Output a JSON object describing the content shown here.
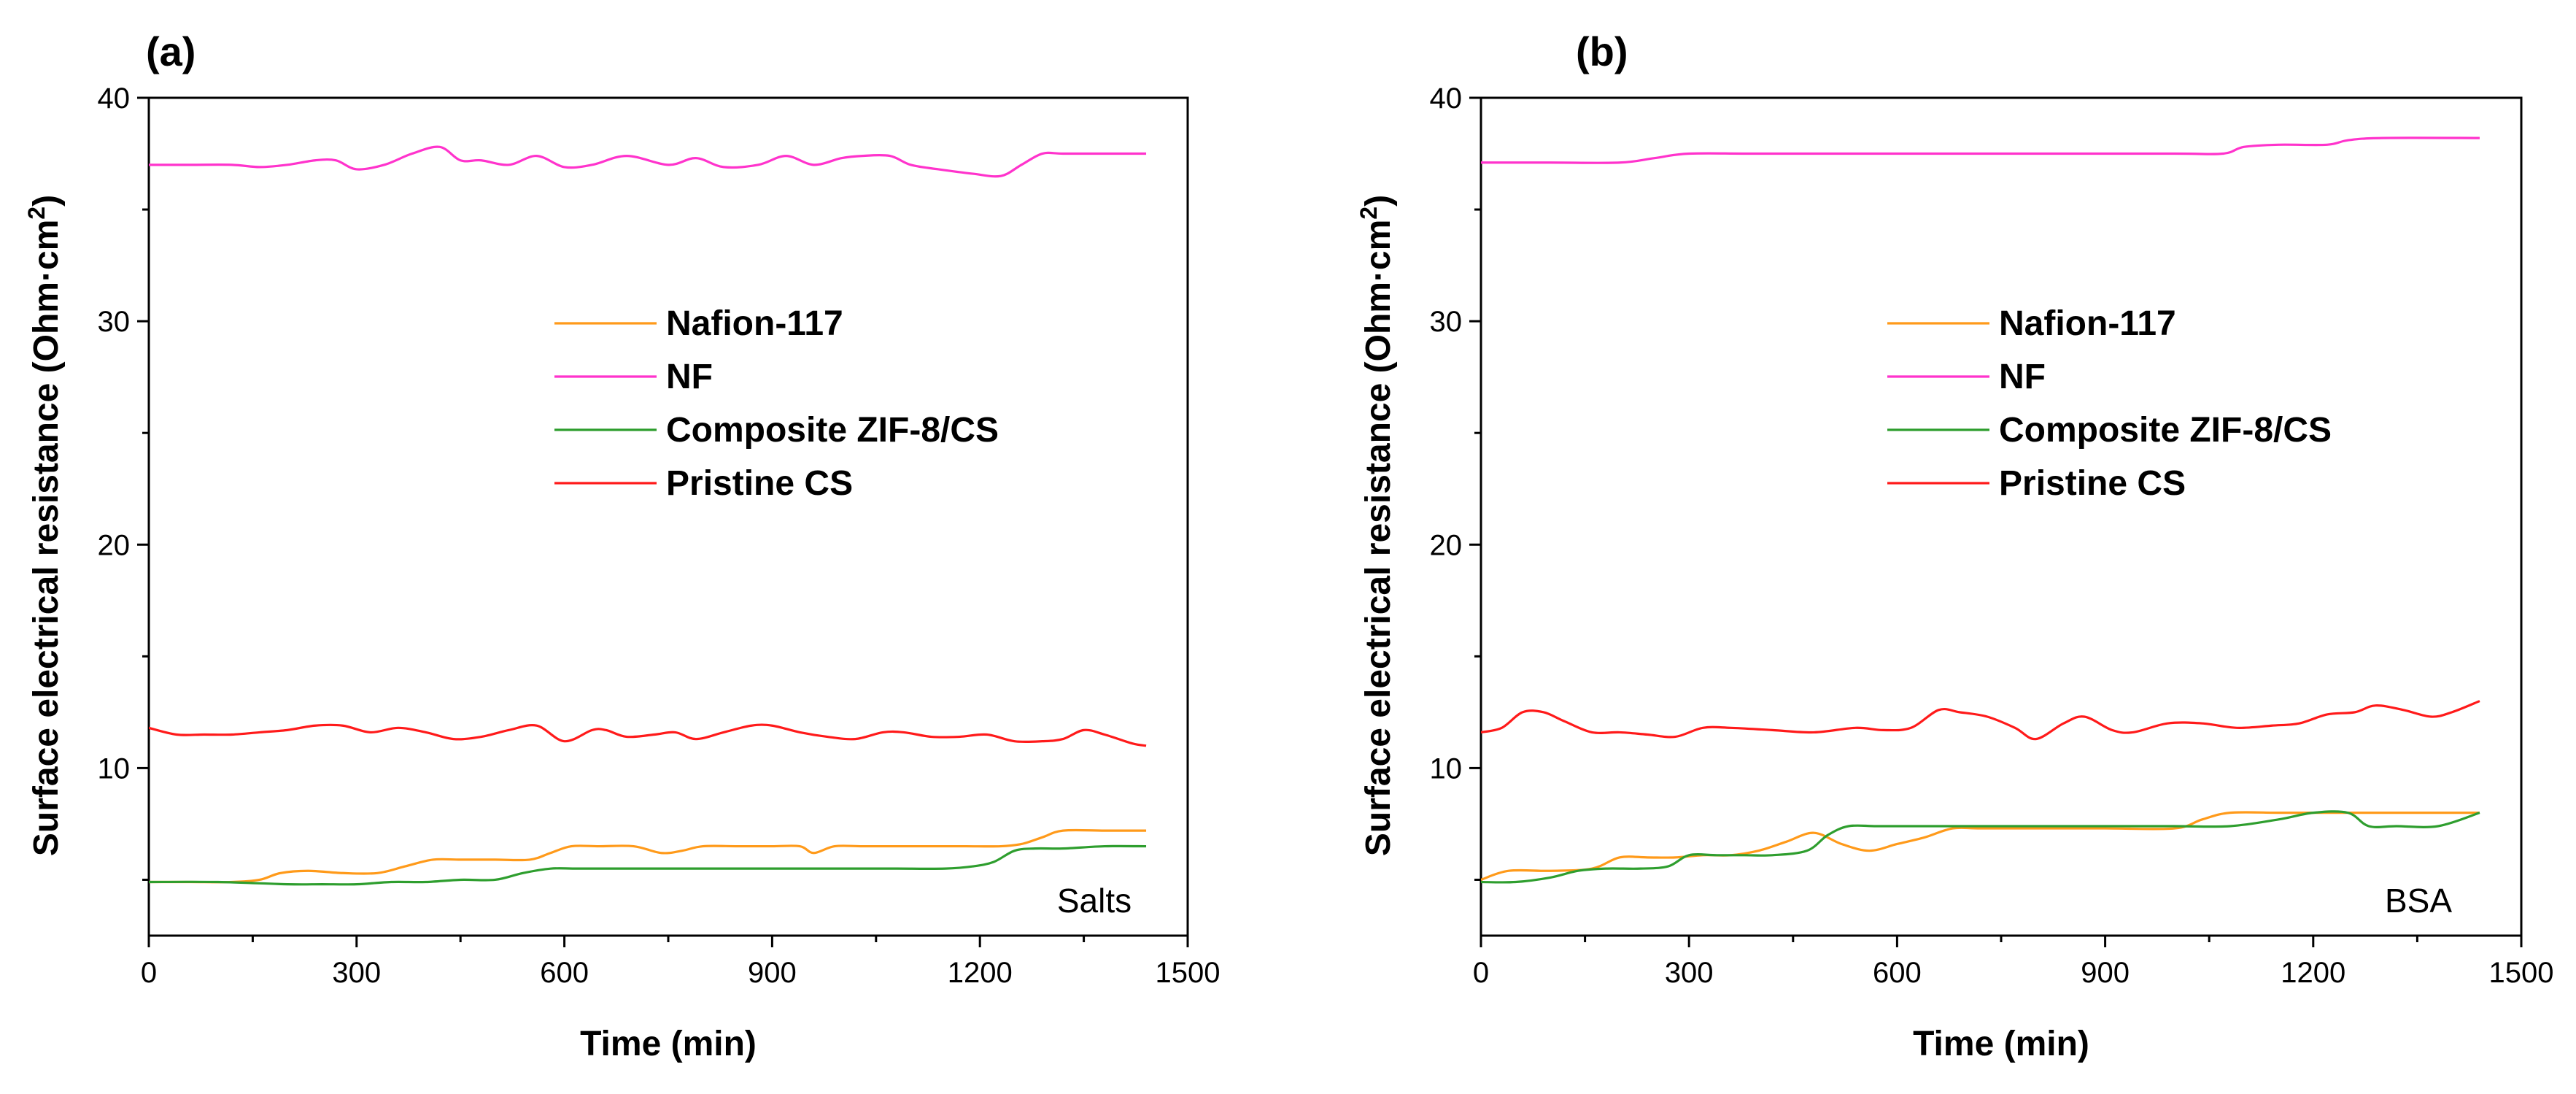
{
  "chart_data": [
    {
      "type": "line",
      "panel_label": "(a)",
      "annotation": "Salts",
      "xlabel": "Time (min)",
      "ylabel_text": "Surface electrical resistance (Ohm·cm",
      "ylabel_sup": "2",
      "ylabel_close": ")",
      "xlim": [
        0,
        1500
      ],
      "ylim": [
        2.5,
        40
      ],
      "xticks": [
        0,
        300,
        600,
        900,
        1200,
        1500
      ],
      "yticks": [
        10,
        20,
        30,
        40
      ],
      "legend_position": "center",
      "series": [
        {
          "name": "Nafion-117",
          "color": "#ff9a1a",
          "x": [
            0,
            60,
            120,
            160,
            190,
            230,
            280,
            330,
            370,
            410,
            450,
            500,
            550,
            580,
            610,
            650,
            700,
            740,
            770,
            800,
            850,
            900,
            940,
            960,
            990,
            1030,
            1080,
            1130,
            1180,
            1230,
            1260,
            1290,
            1320,
            1380,
            1440
          ],
          "y": [
            4.9,
            4.9,
            4.9,
            5.0,
            5.3,
            5.4,
            5.3,
            5.3,
            5.6,
            5.9,
            5.9,
            5.9,
            5.9,
            6.2,
            6.5,
            6.5,
            6.5,
            6.2,
            6.3,
            6.5,
            6.5,
            6.5,
            6.5,
            6.2,
            6.5,
            6.5,
            6.5,
            6.5,
            6.5,
            6.5,
            6.6,
            6.9,
            7.2,
            7.2,
            7.2
          ]
        },
        {
          "name": "NF",
          "color": "#ff33cc",
          "x": [
            0,
            60,
            120,
            160,
            200,
            240,
            270,
            300,
            340,
            380,
            420,
            450,
            480,
            520,
            560,
            600,
            640,
            690,
            750,
            790,
            830,
            880,
            920,
            960,
            1000,
            1030,
            1070,
            1100,
            1140,
            1190,
            1230,
            1260,
            1290,
            1320,
            1380,
            1440
          ],
          "y": [
            37.0,
            37.0,
            37.0,
            36.9,
            37.0,
            37.2,
            37.2,
            36.8,
            37.0,
            37.5,
            37.8,
            37.2,
            37.2,
            37.0,
            37.4,
            36.9,
            37.0,
            37.4,
            37.0,
            37.3,
            36.9,
            37.0,
            37.4,
            37.0,
            37.3,
            37.4,
            37.4,
            37.0,
            36.8,
            36.6,
            36.5,
            37.0,
            37.5,
            37.5,
            37.5,
            37.5
          ]
        },
        {
          "name": "Composite ZIF-8/CS",
          "color": "#2e9e2e",
          "x": [
            0,
            100,
            200,
            250,
            300,
            350,
            400,
            450,
            500,
            540,
            580,
            620,
            700,
            800,
            880,
            950,
            1030,
            1080,
            1150,
            1190,
            1220,
            1250,
            1280,
            1320,
            1380,
            1440
          ],
          "y": [
            4.9,
            4.9,
            4.8,
            4.8,
            4.8,
            4.9,
            4.9,
            5.0,
            5.0,
            5.3,
            5.5,
            5.5,
            5.5,
            5.5,
            5.5,
            5.5,
            5.5,
            5.5,
            5.5,
            5.6,
            5.8,
            6.3,
            6.4,
            6.4,
            6.5,
            6.5
          ]
        },
        {
          "name": "Pristine CS",
          "color": "#ff1a1a",
          "x": [
            0,
            40,
            80,
            120,
            160,
            200,
            240,
            280,
            320,
            360,
            400,
            440,
            480,
            520,
            560,
            600,
            640,
            660,
            690,
            730,
            760,
            790,
            830,
            870,
            900,
            940,
            980,
            1020,
            1060,
            1090,
            1130,
            1170,
            1210,
            1250,
            1290,
            1320,
            1350,
            1380,
            1420,
            1440
          ],
          "y": [
            11.8,
            11.5,
            11.5,
            11.5,
            11.6,
            11.7,
            11.9,
            11.9,
            11.6,
            11.8,
            11.6,
            11.3,
            11.4,
            11.7,
            11.9,
            11.2,
            11.7,
            11.7,
            11.4,
            11.5,
            11.6,
            11.3,
            11.6,
            11.9,
            11.9,
            11.6,
            11.4,
            11.3,
            11.6,
            11.6,
            11.4,
            11.4,
            11.5,
            11.2,
            11.2,
            11.3,
            11.7,
            11.5,
            11.1,
            11.0
          ]
        }
      ]
    },
    {
      "type": "line",
      "panel_label": "(b)",
      "annotation": "BSA",
      "xlabel": "Time (min)",
      "ylabel_text": "Surface electrical resistance (Ohm·cm",
      "ylabel_sup": "2",
      "ylabel_close": ")",
      "xlim": [
        0,
        1500
      ],
      "ylim": [
        2.5,
        40
      ],
      "xticks": [
        0,
        300,
        600,
        900,
        1200,
        1500
      ],
      "yticks": [
        10,
        20,
        30,
        40
      ],
      "legend_position": "center",
      "series": [
        {
          "name": "Nafion-117",
          "color": "#ff9a1a",
          "x": [
            0,
            40,
            100,
            160,
            200,
            240,
            280,
            320,
            360,
            400,
            440,
            480,
            520,
            560,
            600,
            640,
            680,
            720,
            800,
            900,
            1000,
            1040,
            1080,
            1150,
            1200,
            1300,
            1440
          ],
          "y": [
            5.0,
            5.4,
            5.4,
            5.5,
            6.0,
            6.0,
            6.0,
            6.1,
            6.1,
            6.3,
            6.7,
            7.1,
            6.6,
            6.3,
            6.6,
            6.9,
            7.3,
            7.3,
            7.3,
            7.3,
            7.3,
            7.7,
            8.0,
            8.0,
            8.0,
            8.0,
            8.0
          ]
        },
        {
          "name": "NF",
          "color": "#ff33cc",
          "x": [
            0,
            100,
            200,
            250,
            300,
            400,
            600,
            800,
            1000,
            1070,
            1100,
            1150,
            1220,
            1250,
            1300,
            1440
          ],
          "y": [
            37.1,
            37.1,
            37.1,
            37.3,
            37.5,
            37.5,
            37.5,
            37.5,
            37.5,
            37.5,
            37.8,
            37.9,
            37.9,
            38.1,
            38.2,
            38.2
          ]
        },
        {
          "name": "Composite ZIF-8/CS",
          "color": "#2e9e2e",
          "x": [
            0,
            50,
            100,
            140,
            180,
            230,
            270,
            300,
            340,
            380,
            420,
            470,
            500,
            530,
            570,
            620,
            680,
            800,
            900,
            1000,
            1080,
            1150,
            1200,
            1250,
            1280,
            1320,
            1380,
            1440
          ],
          "y": [
            4.9,
            4.9,
            5.1,
            5.4,
            5.5,
            5.5,
            5.6,
            6.1,
            6.1,
            6.1,
            6.1,
            6.3,
            7.0,
            7.4,
            7.4,
            7.4,
            7.4,
            7.4,
            7.4,
            7.4,
            7.4,
            7.7,
            8.0,
            8.0,
            7.4,
            7.4,
            7.4,
            8.0
          ]
        },
        {
          "name": "Pristine CS",
          "color": "#ff1a1a",
          "x": [
            0,
            30,
            60,
            90,
            120,
            160,
            200,
            240,
            280,
            320,
            360,
            420,
            480,
            540,
            580,
            620,
            660,
            690,
            730,
            770,
            800,
            840,
            870,
            910,
            940,
            990,
            1040,
            1090,
            1140,
            1180,
            1220,
            1260,
            1290,
            1330,
            1370,
            1400,
            1440
          ],
          "y": [
            11.6,
            11.8,
            12.5,
            12.5,
            12.1,
            11.6,
            11.6,
            11.5,
            11.4,
            11.8,
            11.8,
            11.7,
            11.6,
            11.8,
            11.7,
            11.8,
            12.6,
            12.5,
            12.3,
            11.8,
            11.3,
            12.0,
            12.3,
            11.7,
            11.6,
            12.0,
            12.0,
            11.8,
            11.9,
            12.0,
            12.4,
            12.5,
            12.8,
            12.6,
            12.3,
            12.5,
            13.0
          ]
        }
      ]
    }
  ]
}
